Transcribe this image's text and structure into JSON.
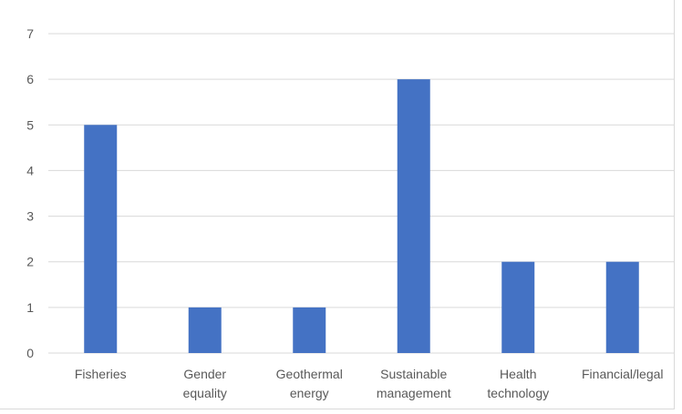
{
  "chart_data": {
    "type": "bar",
    "categories": [
      [
        "Fisheries"
      ],
      [
        "Gender",
        "equality"
      ],
      [
        "Geothermal",
        "energy"
      ],
      [
        "Sustainable",
        "management"
      ],
      [
        "Health",
        "technology"
      ],
      [
        "Financial/legal"
      ]
    ],
    "values": [
      5,
      1,
      1,
      6,
      2,
      2
    ],
    "title": "",
    "xlabel": "",
    "ylabel": "",
    "ylim": [
      0,
      7
    ],
    "yticks": [
      0,
      1,
      2,
      3,
      4,
      5,
      6,
      7
    ],
    "grid": true,
    "legend": "none",
    "bar_color": "#4472C4",
    "grid_color": "#d9d9d9",
    "text_color": "#595959"
  }
}
